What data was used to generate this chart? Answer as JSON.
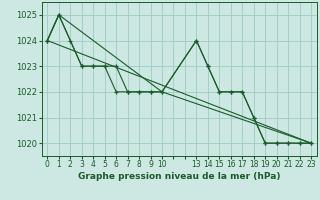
{
  "background_color": "#cde8e2",
  "grid_color": "#9cccc2",
  "line_color": "#1a5c2a",
  "marker_color": "#1a5c2a",
  "title": "Graphe pression niveau de la mer (hPa)",
  "ylim": [
    1019.5,
    1025.5
  ],
  "yticks": [
    1020,
    1021,
    1022,
    1023,
    1024,
    1025
  ],
  "xtick_positions": [
    0,
    1,
    2,
    3,
    4,
    5,
    6,
    7,
    8,
    9,
    10,
    11,
    12,
    13,
    14,
    15,
    16,
    17,
    18,
    19,
    20,
    21,
    22,
    23
  ],
  "xtick_labels": [
    "0",
    "1",
    "2",
    "3",
    "4",
    "5",
    "6",
    "7",
    "8",
    "9",
    "10",
    "",
    "",
    "13",
    "14",
    "15",
    "16",
    "17",
    "18",
    "19",
    "20",
    "21",
    "22",
    "23"
  ],
  "xlim": [
    -0.5,
    23.5
  ],
  "series": [
    {
      "x": [
        0,
        1,
        2,
        3,
        4,
        5,
        6,
        7,
        8,
        9,
        10,
        13,
        14,
        15,
        16,
        17,
        18,
        19,
        20,
        21,
        22,
        23
      ],
      "y": [
        1024.0,
        1025.0,
        1024.0,
        1023.0,
        1023.0,
        1023.0,
        1022.0,
        1022.0,
        1022.0,
        1022.0,
        1022.0,
        1024.0,
        1023.0,
        1022.0,
        1022.0,
        1022.0,
        1021.0,
        1020.0,
        1020.0,
        1020.0,
        1020.0,
        1020.0
      ],
      "marker": true
    },
    {
      "x": [
        0,
        1,
        3,
        4,
        5,
        6,
        7,
        8,
        9,
        10,
        13,
        14,
        15,
        16,
        17,
        18,
        19,
        20,
        21,
        22,
        23
      ],
      "y": [
        1024.0,
        1025.0,
        1023.0,
        1023.0,
        1023.0,
        1023.0,
        1022.0,
        1022.0,
        1022.0,
        1022.0,
        1024.0,
        1023.0,
        1022.0,
        1022.0,
        1022.0,
        1021.0,
        1020.0,
        1020.0,
        1020.0,
        1020.0,
        1020.0
      ],
      "marker": true
    },
    {
      "x": [
        0,
        1,
        10,
        23
      ],
      "y": [
        1024.0,
        1025.0,
        1022.0,
        1020.0
      ],
      "marker": false
    },
    {
      "x": [
        0,
        23
      ],
      "y": [
        1024.0,
        1020.0
      ],
      "marker": false
    }
  ]
}
